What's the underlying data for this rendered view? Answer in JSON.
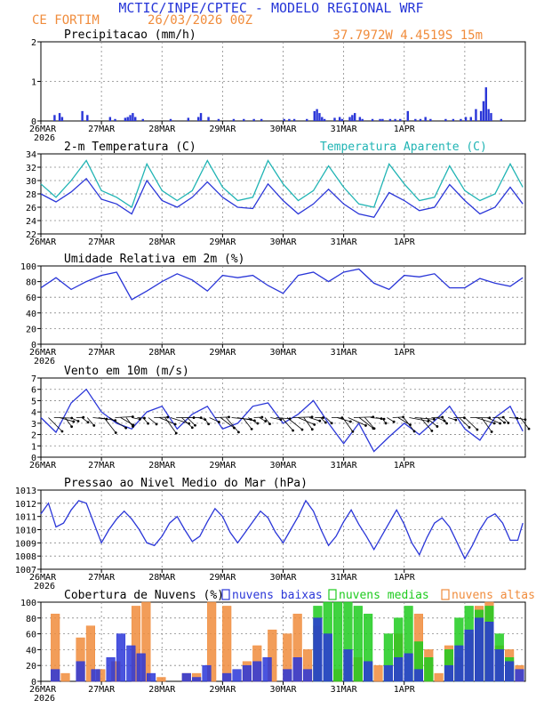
{
  "header": {
    "title": "MCTIC/INPE/CPTEC - MODELO REGIONAL WRF",
    "location": "CE FORTIM",
    "date": "26/03/2026 00Z",
    "coords": "37.7972W 4.4519S 15m"
  },
  "colors": {
    "blue": "#2a36d8",
    "cyan": "#20b4b4",
    "orange": "#f08c3c",
    "green": "#1ecb1e",
    "title_blue": "#2636d8"
  },
  "x_axis": {
    "labels": [
      "26MAR",
      "27MAR",
      "28MAR",
      "29MAR",
      "30MAR",
      "31MAR",
      "1APR"
    ],
    "year": "2026"
  },
  "chart_data": [
    {
      "type": "bar",
      "title": "Precipitacao (mm/h)",
      "ylim": [
        0,
        2
      ],
      "yticks": [
        "0",
        "1",
        "2"
      ],
      "x_unit": "hours since 26MAR 00Z",
      "bars": [
        [
          5,
          0.15
        ],
        [
          7,
          0.2
        ],
        [
          8,
          0.1
        ],
        [
          16,
          0.25
        ],
        [
          18,
          0.15
        ],
        [
          27,
          0.1
        ],
        [
          29,
          0.05
        ],
        [
          33,
          0.08
        ],
        [
          34,
          0.1
        ],
        [
          35,
          0.15
        ],
        [
          36,
          0.2
        ],
        [
          37,
          0.1
        ],
        [
          40,
          0.05
        ],
        [
          51,
          0.05
        ],
        [
          58,
          0.08
        ],
        [
          62,
          0.1
        ],
        [
          63,
          0.2
        ],
        [
          66,
          0.1
        ],
        [
          70,
          0.05
        ],
        [
          76,
          0.05
        ],
        [
          80,
          0.05
        ],
        [
          84,
          0.05
        ],
        [
          87,
          0.05
        ],
        [
          96,
          0.05
        ],
        [
          98,
          0.05
        ],
        [
          100,
          0.05
        ],
        [
          105,
          0.05
        ],
        [
          108,
          0.25
        ],
        [
          109,
          0.3
        ],
        [
          110,
          0.2
        ],
        [
          111,
          0.1
        ],
        [
          112,
          0.05
        ],
        [
          116,
          0.08
        ],
        [
          118,
          0.1
        ],
        [
          119,
          0.05
        ],
        [
          122,
          0.1
        ],
        [
          123,
          0.15
        ],
        [
          124,
          0.2
        ],
        [
          126,
          0.1
        ],
        [
          127,
          0.05
        ],
        [
          131,
          0.05
        ],
        [
          134,
          0.05
        ],
        [
          135,
          0.05
        ],
        [
          138,
          0.05
        ],
        [
          140,
          0.05
        ],
        [
          142,
          0.05
        ],
        [
          145,
          0.25
        ],
        [
          148,
          0.05
        ],
        [
          150,
          0.05
        ],
        [
          152,
          0.1
        ],
        [
          154,
          0.05
        ],
        [
          160,
          0.05
        ],
        [
          163,
          0.05
        ],
        [
          166,
          0.05
        ],
        [
          168,
          0.1
        ],
        [
          170,
          0.1
        ],
        [
          172,
          0.3
        ],
        [
          174,
          0.25
        ],
        [
          175,
          0.5
        ],
        [
          176,
          0.85
        ],
        [
          177,
          0.3
        ],
        [
          178,
          0.2
        ],
        [
          182,
          0.05
        ]
      ]
    },
    {
      "type": "line",
      "title": "2-m Temperatura (C)",
      "legend": "Temperatura Aparente (C)",
      "ylim": [
        22,
        34
      ],
      "yticks": [
        "22",
        "24",
        "26",
        "28",
        "30",
        "32",
        "34"
      ],
      "series": [
        {
          "name": "temperatura",
          "x": [
            0,
            6,
            12,
            18,
            24,
            30,
            36,
            42,
            48,
            54,
            60,
            66,
            72,
            78,
            84,
            90,
            96,
            102,
            108,
            114,
            120,
            126,
            132,
            138,
            144,
            150,
            156,
            162,
            168,
            174,
            180,
            186,
            191
          ],
          "values": [
            28.0,
            26.8,
            28.3,
            30.3,
            27.2,
            26.5,
            25.0,
            30.0,
            27.0,
            26.0,
            27.5,
            29.8,
            27.5,
            26.0,
            25.8,
            29.5,
            27.0,
            25.0,
            26.5,
            28.7,
            26.5,
            25.0,
            24.5,
            28.2,
            27.0,
            25.5,
            26.0,
            29.4,
            27.0,
            25.0,
            26.0,
            29.0,
            26.5
          ]
        },
        {
          "name": "temperatura aparente",
          "x": [
            0,
            6,
            12,
            18,
            24,
            30,
            36,
            42,
            48,
            54,
            60,
            66,
            72,
            78,
            84,
            90,
            96,
            102,
            108,
            114,
            120,
            126,
            132,
            138,
            144,
            150,
            156,
            162,
            168,
            174,
            180,
            186,
            191
          ],
          "values": [
            29.5,
            27.5,
            30.0,
            33.0,
            28.5,
            27.5,
            26.0,
            32.5,
            28.5,
            27.0,
            28.5,
            33.0,
            29.0,
            27.0,
            27.5,
            33.0,
            29.5,
            27.0,
            28.5,
            32.2,
            29.0,
            26.5,
            26.0,
            32.5,
            29.5,
            27.0,
            27.5,
            32.2,
            28.5,
            27.0,
            28.0,
            32.5,
            29.0
          ]
        }
      ]
    },
    {
      "type": "line",
      "title": "Umidade Relativa em 2m (%)",
      "ylim": [
        0,
        100
      ],
      "yticks": [
        "0",
        "20",
        "40",
        "60",
        "80",
        "100"
      ],
      "series": [
        {
          "name": "umidade",
          "x": [
            0,
            6,
            12,
            18,
            24,
            30,
            36,
            42,
            48,
            54,
            60,
            66,
            72,
            78,
            84,
            90,
            96,
            102,
            108,
            114,
            120,
            126,
            132,
            138,
            144,
            150,
            156,
            162,
            168,
            174,
            180,
            186,
            191
          ],
          "values": [
            72,
            85,
            70,
            80,
            88,
            92,
            57,
            68,
            80,
            90,
            82,
            68,
            88,
            85,
            88,
            75,
            65,
            88,
            92,
            80,
            92,
            96,
            78,
            70,
            88,
            86,
            90,
            72,
            72,
            84,
            78,
            74,
            85
          ]
        }
      ]
    },
    {
      "type": "line",
      "title": "Vento em 10m (m/s)",
      "ylim": [
        0,
        7
      ],
      "yticks": [
        "0",
        "1",
        "2",
        "3",
        "4",
        "5",
        "6",
        "7"
      ],
      "series": [
        {
          "name": "vento",
          "x": [
            0,
            6,
            12,
            18,
            24,
            30,
            36,
            42,
            48,
            54,
            60,
            66,
            72,
            78,
            84,
            90,
            96,
            102,
            108,
            114,
            120,
            126,
            132,
            138,
            144,
            150,
            156,
            162,
            168,
            174,
            180,
            186,
            191
          ],
          "values": [
            3.5,
            2.2,
            4.8,
            6.0,
            4.0,
            3.0,
            2.5,
            4.0,
            4.5,
            2.5,
            3.8,
            4.5,
            2.5,
            3.0,
            4.5,
            4.8,
            3.0,
            3.8,
            5.0,
            3.0,
            1.2,
            3.0,
            0.5,
            1.8,
            3.0,
            2.0,
            3.2,
            4.5,
            2.5,
            1.5,
            3.5,
            4.5,
            2.3
          ]
        }
      ]
    },
    {
      "type": "line",
      "title": "Pressao ao Nivel Medio do Mar (hPa)",
      "ylim": [
        1007,
        1013
      ],
      "yticks": [
        "1007",
        "1008",
        "1009",
        "1010",
        "1011",
        "1012",
        "1013"
      ],
      "series": [
        {
          "name": "pressao",
          "x": [
            0,
            3,
            6,
            9,
            12,
            15,
            18,
            21,
            24,
            27,
            30,
            33,
            36,
            39,
            42,
            45,
            48,
            51,
            54,
            57,
            60,
            63,
            66,
            69,
            72,
            75,
            78,
            81,
            84,
            87,
            90,
            93,
            96,
            99,
            102,
            105,
            108,
            111,
            114,
            117,
            120,
            123,
            126,
            129,
            132,
            135,
            138,
            141,
            144,
            147,
            150,
            153,
            156,
            159,
            162,
            165,
            168,
            171,
            174,
            177,
            180,
            183,
            186,
            189,
            191
          ],
          "values": [
            1011.2,
            1012.0,
            1010.2,
            1010.5,
            1011.5,
            1012.2,
            1012.0,
            1010.5,
            1009.0,
            1010.0,
            1010.8,
            1011.4,
            1010.8,
            1010.0,
            1009.0,
            1008.8,
            1009.5,
            1010.5,
            1011.0,
            1010.0,
            1009.1,
            1009.5,
            1010.6,
            1011.6,
            1011.0,
            1009.8,
            1009.0,
            1009.8,
            1010.6,
            1011.4,
            1010.9,
            1009.8,
            1009.0,
            1010.0,
            1011.0,
            1012.2,
            1011.4,
            1010.0,
            1008.8,
            1009.5,
            1010.6,
            1011.5,
            1010.4,
            1009.5,
            1008.5,
            1009.5,
            1010.5,
            1011.5,
            1010.4,
            1009.0,
            1008.1,
            1009.4,
            1010.5,
            1010.9,
            1010.2,
            1009.0,
            1007.8,
            1008.8,
            1010.0,
            1010.9,
            1011.2,
            1010.5,
            1009.2,
            1009.2,
            1010.5
          ]
        }
      ]
    },
    {
      "type": "bar",
      "title": "Cobertura de Nuvens (%)",
      "legend": [
        "nuvens baixas",
        "nuvens medias",
        "nuvens altas"
      ],
      "ylim": [
        0,
        100
      ],
      "yticks": [
        "0",
        "20",
        "40",
        "60",
        "80",
        "100"
      ],
      "series": [
        {
          "name": "nuvens altas",
          "x": [
            4,
            8,
            14,
            18,
            22,
            28,
            36,
            40,
            46,
            56,
            60,
            66,
            72,
            80,
            84,
            90,
            96,
            100,
            104,
            108,
            116,
            124,
            132,
            140,
            148,
            152,
            156,
            160,
            164,
            168,
            172,
            176,
            180,
            184,
            188
          ],
          "values": [
            85,
            10,
            55,
            70,
            15,
            25,
            95,
            100,
            5,
            10,
            10,
            100,
            95,
            25,
            45,
            65,
            60,
            85,
            40,
            70,
            15,
            30,
            20,
            60,
            85,
            40,
            10,
            45,
            30,
            60,
            95,
            100,
            45,
            40,
            20
          ]
        },
        {
          "name": "nuvens medias",
          "x": [
            108,
            112,
            116,
            120,
            124,
            128,
            136,
            140,
            144,
            148,
            152,
            160,
            164,
            168,
            172,
            176,
            180,
            184
          ],
          "values": [
            95,
            100,
            100,
            100,
            95,
            85,
            60,
            80,
            95,
            50,
            30,
            40,
            80,
            95,
            90,
            95,
            60,
            30
          ]
        },
        {
          "name": "nuvens baixas",
          "x": [
            4,
            14,
            20,
            26,
            30,
            34,
            38,
            42,
            56,
            60,
            64,
            72,
            76,
            80,
            84,
            88,
            96,
            100,
            104,
            108,
            112,
            120,
            128,
            136,
            140,
            144,
            148,
            160,
            164,
            168,
            172,
            176,
            180,
            184,
            188
          ],
          "values": [
            15,
            25,
            15,
            30,
            60,
            45,
            35,
            10,
            10,
            5,
            20,
            10,
            15,
            20,
            25,
            30,
            15,
            30,
            15,
            80,
            60,
            40,
            25,
            20,
            30,
            35,
            15,
            20,
            45,
            65,
            80,
            75,
            40,
            25,
            15
          ]
        }
      ]
    }
  ]
}
